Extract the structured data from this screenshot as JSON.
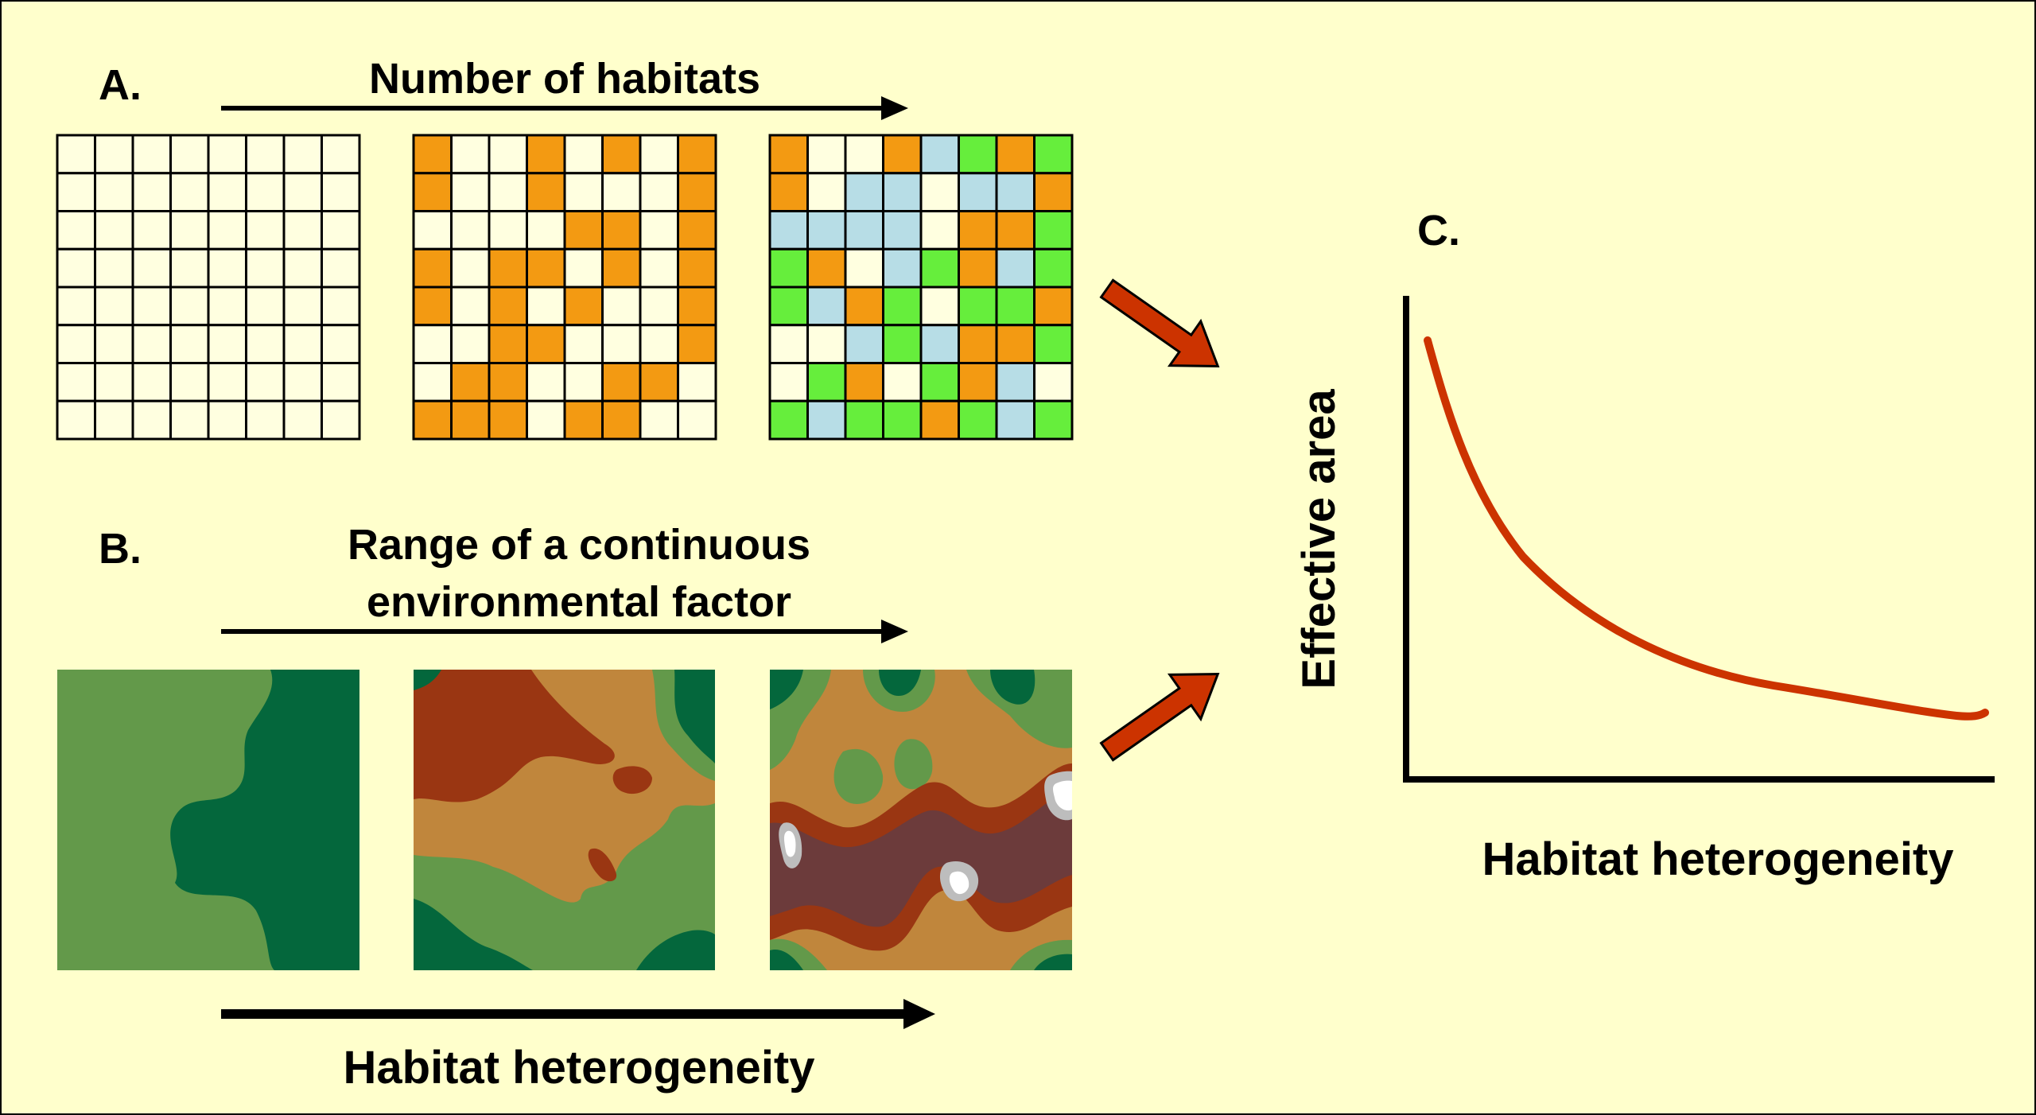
{
  "panel_a": {
    "letter": "A.",
    "arrow_label": "Number of habitats",
    "grid_size": 8,
    "palette": {
      "0": "#ffffe0",
      "1": "#f39a12",
      "2": "#b7dde6",
      "3": "#66ee3c"
    },
    "grids": [
      [
        "00000000",
        "00000000",
        "00000000",
        "00000000",
        "00000000",
        "00000000",
        "00000000",
        "00000000"
      ],
      [
        "10010101",
        "10010001",
        "00001101",
        "10110101",
        "10101001",
        "00110001",
        "01100110",
        "11101100"
      ],
      [
        "10012313",
        "10220221",
        "22220113",
        "31023123",
        "32130331",
        "00232113",
        "03103120",
        "32331323"
      ]
    ]
  },
  "panel_b": {
    "letter": "B.",
    "arrow_label_line1": "Range of a continuous",
    "arrow_label_line2": "environmental factor",
    "colors": {
      "light_green": "#63994a",
      "dark_green": "#04673c",
      "tan": "#c0863c",
      "brown": "#9a3612",
      "purple": "#6c3b3b",
      "gray": "#bdbdbd",
      "white": "#ffffff"
    }
  },
  "bottom_arrow_label": "Habitat heterogeneity",
  "panel_c": {
    "letter": "C.",
    "ylabel": "Effective area",
    "xlabel": "Habitat heterogeneity",
    "curve_color": "#cc3300"
  },
  "arrow_color": "#cc3300"
}
